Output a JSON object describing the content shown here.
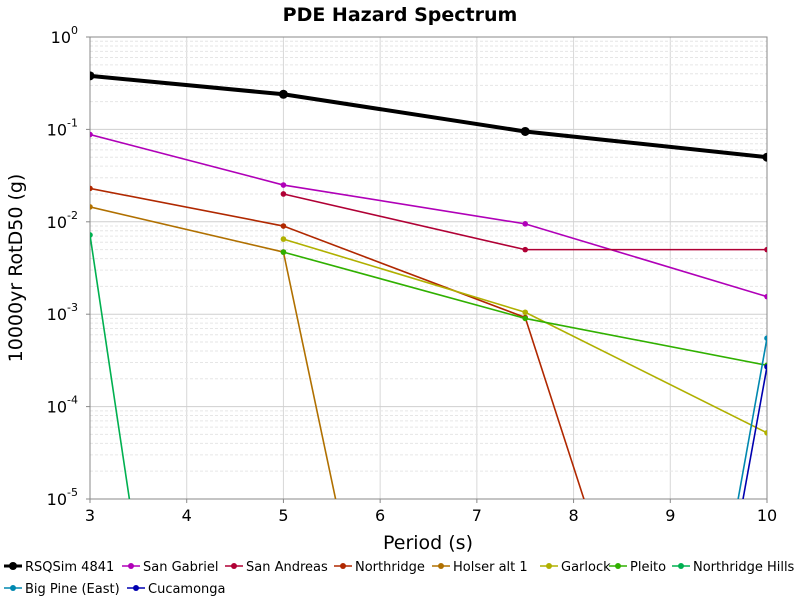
{
  "chart_data": {
    "type": "line",
    "title": "PDE Hazard Spectrum",
    "xlabel": "Period (s)",
    "ylabel": "10000yr RotD50 (g)",
    "xlim": [
      3,
      10
    ],
    "ylim": [
      1e-05,
      1
    ],
    "y_scale": "log",
    "x_ticks": [
      3,
      4,
      5,
      6,
      7,
      8,
      9,
      10
    ],
    "y_ticks": [
      {
        "value": 1,
        "base": "10",
        "exp": "0"
      },
      {
        "value": 0.1,
        "base": "10",
        "exp": "-1"
      },
      {
        "value": 0.01,
        "base": "10",
        "exp": "-2"
      },
      {
        "value": 0.001,
        "base": "10",
        "exp": "-3"
      },
      {
        "value": 0.0001,
        "base": "10",
        "exp": "-4"
      },
      {
        "value": 1e-05,
        "base": "10",
        "exp": "-5"
      }
    ],
    "grid": true,
    "legend_position": "bottom",
    "series": [
      {
        "name": "RSQSim 4841",
        "color": "#000000",
        "x": [
          3,
          5,
          7.5,
          10
        ],
        "y": [
          0.38,
          0.24,
          0.095,
          0.05
        ]
      },
      {
        "name": "San Gabriel",
        "color": "#b000b8",
        "x": [
          3,
          5,
          7.5,
          10
        ],
        "y": [
          0.088,
          0.025,
          0.0095,
          0.00155
        ]
      },
      {
        "name": "San Andreas",
        "color": "#b00035",
        "x": [
          5,
          7.5,
          10
        ],
        "y": [
          0.02,
          0.005,
          0.005
        ]
      },
      {
        "name": "Northridge",
        "color": "#b02800",
        "x": [
          3,
          5,
          7.5,
          8.2
        ],
        "y": [
          0.023,
          0.009,
          0.00092,
          5e-06
        ]
      },
      {
        "name": "Holser alt 1",
        "color": "#b07000",
        "x": [
          3,
          5,
          5.6
        ],
        "y": [
          0.0145,
          0.0047,
          5e-06
        ]
      },
      {
        "name": "Garlock",
        "color": "#b0b000",
        "x": [
          5,
          7.5,
          10
        ],
        "y": [
          0.0065,
          0.00105,
          5.2e-05
        ]
      },
      {
        "name": "Pleito",
        "color": "#30b000",
        "x": [
          5,
          7.5,
          10
        ],
        "y": [
          0.0047,
          0.0009,
          0.00028
        ]
      },
      {
        "name": "Northridge Hills",
        "color": "#00b050",
        "x": [
          3,
          3.45
        ],
        "y": [
          0.0072,
          5e-06
        ]
      },
      {
        "name": "Big Pine (East)",
        "color": "#0088b0",
        "x": [
          9.65,
          10
        ],
        "y": [
          5e-06,
          0.00055
        ]
      },
      {
        "name": "Cucamonga",
        "color": "#0000b0",
        "x": [
          9.7,
          10
        ],
        "y": [
          5e-06,
          0.00027
        ]
      }
    ]
  }
}
